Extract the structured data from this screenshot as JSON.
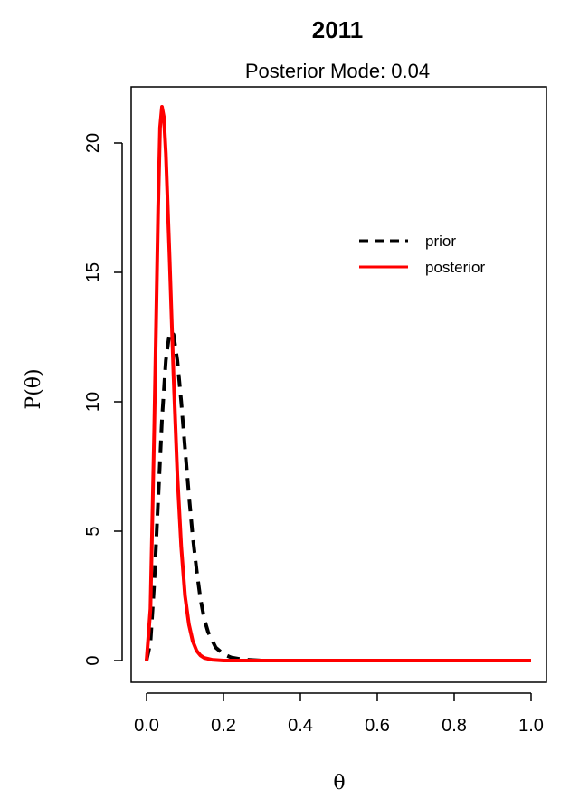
{
  "chart_data": {
    "type": "line",
    "title": "2011",
    "subtitle": "Posterior Mode: 0.04",
    "xlabel": "θ",
    "ylabel": "P(θ)",
    "xlim": [
      0,
      1
    ],
    "ylim": [
      0,
      22
    ],
    "x_ticks": [
      "0.0",
      "0.2",
      "0.4",
      "0.6",
      "0.8",
      "1.0"
    ],
    "y_ticks": [
      "0",
      "5",
      "10",
      "15",
      "20"
    ],
    "legend_position": "upper-right",
    "grid": false,
    "series": [
      {
        "name": "prior",
        "color": "#000000",
        "style": "dashed",
        "x": [
          0.0,
          0.01,
          0.02,
          0.03,
          0.04,
          0.05,
          0.06,
          0.07,
          0.08,
          0.09,
          0.1,
          0.11,
          0.12,
          0.13,
          0.14,
          0.15,
          0.16,
          0.18,
          0.2,
          0.22,
          0.25,
          0.3,
          0.4,
          0.5,
          0.6,
          0.7,
          0.8,
          0.9,
          1.0
        ],
        "y": [
          0.0,
          0.7,
          3.0,
          6.2,
          9.3,
          11.6,
          12.7,
          12.6,
          11.6,
          10.0,
          8.2,
          6.4,
          4.8,
          3.5,
          2.4,
          1.6,
          1.1,
          0.5,
          0.25,
          0.12,
          0.04,
          0.0,
          0.0,
          0.0,
          0.0,
          0.0,
          0.0,
          0.0,
          0.0
        ]
      },
      {
        "name": "posterior",
        "color": "#ff0000",
        "style": "solid",
        "x": [
          0.0,
          0.01,
          0.02,
          0.03,
          0.035,
          0.04,
          0.045,
          0.05,
          0.06,
          0.07,
          0.08,
          0.09,
          0.1,
          0.11,
          0.12,
          0.13,
          0.14,
          0.15,
          0.17,
          0.2,
          0.3,
          0.4,
          0.5,
          0.6,
          0.7,
          0.8,
          0.9,
          1.0
        ],
        "y": [
          0.0,
          2.0,
          9.0,
          17.5,
          20.6,
          21.4,
          21.0,
          19.6,
          15.5,
          11.0,
          7.2,
          4.4,
          2.5,
          1.4,
          0.75,
          0.38,
          0.2,
          0.1,
          0.03,
          0.0,
          0.0,
          0.0,
          0.0,
          0.0,
          0.0,
          0.0,
          0.0,
          0.0
        ]
      }
    ]
  }
}
